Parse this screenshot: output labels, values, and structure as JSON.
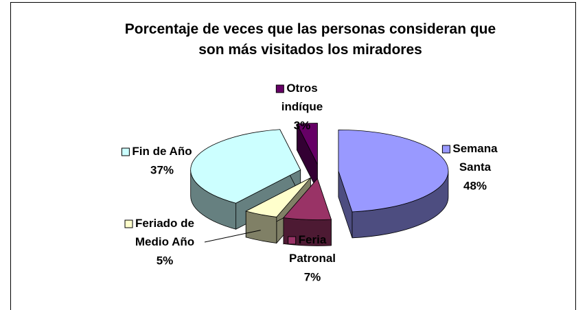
{
  "chart_data": {
    "type": "pie3d",
    "title": "Porcentaje de veces que las personas consideran que son más visitados los miradores",
    "categories": [
      "Semana Santa",
      "Feria Patronal",
      "Feriado de Medio Año",
      "Fin de Año",
      "Otros indíque"
    ],
    "values": [
      48,
      7,
      5,
      37,
      3
    ],
    "value_labels": [
      "48%",
      "7%",
      "5%",
      "37%",
      "3%"
    ],
    "colors": [
      "#9999ff",
      "#993366",
      "#ffffcc",
      "#ccffff",
      "#660066"
    ]
  }
}
